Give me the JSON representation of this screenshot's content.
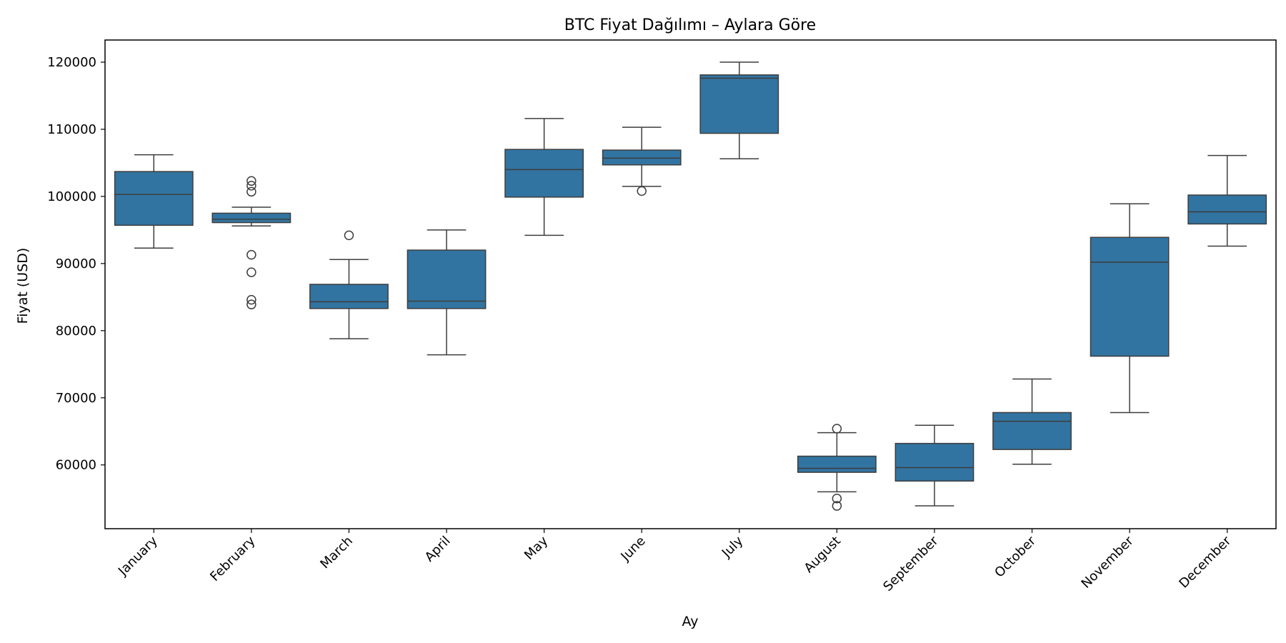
{
  "chart_data": {
    "type": "box",
    "title": "BTC Fiyat Dağılımı – Aylara Göre",
    "xlabel": "Ay",
    "ylabel": "Fiyat (USD)",
    "ylim": [
      50500,
      123300
    ],
    "yticks": [
      60000,
      70000,
      80000,
      90000,
      100000,
      110000,
      120000
    ],
    "grid": false,
    "legend": "none",
    "color": "#3274a1",
    "edge_color": "#3d3d3d",
    "categories": [
      "January",
      "February",
      "March",
      "April",
      "May",
      "June",
      "July",
      "August",
      "September",
      "October",
      "November",
      "December"
    ],
    "boxes": [
      {
        "whisker_low": 92300,
        "q1": 95700,
        "median": 100300,
        "q3": 103700,
        "whisker_high": 106200,
        "outliers": []
      },
      {
        "whisker_low": 95600,
        "q1": 96100,
        "median": 96600,
        "q3": 97500,
        "whisker_high": 98400,
        "outliers": [
          102300,
          101600,
          100700,
          91300,
          88700,
          84600,
          83900
        ]
      },
      {
        "whisker_low": 78800,
        "q1": 83300,
        "median": 84300,
        "q3": 86900,
        "whisker_high": 90600,
        "outliers": [
          94200
        ]
      },
      {
        "whisker_low": 76400,
        "q1": 83300,
        "median": 84400,
        "q3": 92000,
        "whisker_high": 95000,
        "outliers": []
      },
      {
        "whisker_low": 94200,
        "q1": 99900,
        "median": 104000,
        "q3": 107000,
        "whisker_high": 111600,
        "outliers": []
      },
      {
        "whisker_low": 101500,
        "q1": 104700,
        "median": 105700,
        "q3": 106900,
        "whisker_high": 110300,
        "outliers": [
          100800
        ]
      },
      {
        "whisker_low": 105600,
        "q1": 109400,
        "median": 117600,
        "q3": 118100,
        "whisker_high": 120000,
        "outliers": []
      },
      {
        "whisker_low": 56000,
        "q1": 58900,
        "median": 59500,
        "q3": 61300,
        "whisker_high": 64800,
        "outliers": [
          65400,
          55000,
          53900
        ]
      },
      {
        "whisker_low": 53900,
        "q1": 57600,
        "median": 59600,
        "q3": 63200,
        "whisker_high": 65900,
        "outliers": []
      },
      {
        "whisker_low": 60100,
        "q1": 62300,
        "median": 66500,
        "q3": 67800,
        "whisker_high": 72800,
        "outliers": []
      },
      {
        "whisker_low": 67800,
        "q1": 76200,
        "median": 90200,
        "q3": 93900,
        "whisker_high": 98900,
        "outliers": []
      },
      {
        "whisker_low": 92600,
        "q1": 95900,
        "median": 97700,
        "q3": 100200,
        "whisker_high": 106100,
        "outliers": []
      }
    ]
  }
}
